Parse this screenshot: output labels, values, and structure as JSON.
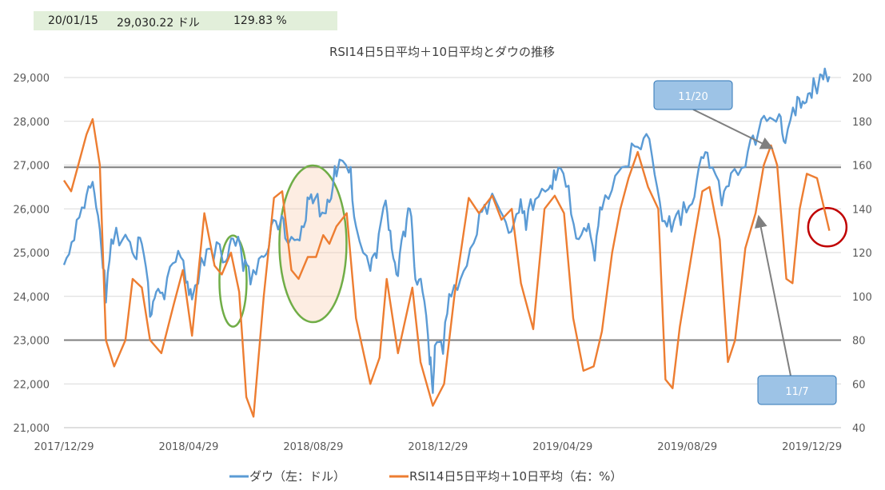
{
  "info_bar": {
    "date": "20/01/15",
    "price": "29,030.22 ドル",
    "rsi": "129.83 %"
  },
  "chart_data": {
    "type": "line",
    "title": "RSI14日5日平均＋10日平均とダウの推移",
    "x_tick_labels": [
      "2017/12/29",
      "2018/04/29",
      "2018/08/29",
      "2018/12/29",
      "2019/04/29",
      "2019/08/29",
      "2019/12/29"
    ],
    "x_range": [
      "2017/12/29",
      "2020/01/15"
    ],
    "y_left": {
      "ticks": [
        "21,000",
        "22,000",
        "23,000",
        "24,000",
        "25,000",
        "26,000",
        "27,000",
        "28,000",
        "29,000"
      ],
      "range": [
        21000,
        29000
      ]
    },
    "y_right": {
      "ticks": [
        "40",
        "60",
        "80",
        "100",
        "120",
        "140",
        "160",
        "180",
        "200"
      ],
      "range": [
        40,
        200
      ]
    },
    "grid": true,
    "legend_position": "bottom",
    "series": [
      {
        "name": "ダウ（左：ドル）",
        "axis": "left",
        "color": "#5b9bd5",
        "points": [
          [
            "2017-12-29",
            24719
          ],
          [
            "2018-01-08",
            25283
          ],
          [
            "2018-01-18",
            26017
          ],
          [
            "2018-01-26",
            26616
          ],
          [
            "2018-02-02",
            25520
          ],
          [
            "2018-02-08",
            23860
          ],
          [
            "2018-02-15",
            25200
          ],
          [
            "2018-02-27",
            25410
          ],
          [
            "2018-03-08",
            24895
          ],
          [
            "2018-03-15",
            25200
          ],
          [
            "2018-03-23",
            23533
          ],
          [
            "2018-03-29",
            24103
          ],
          [
            "2018-04-06",
            23932
          ],
          [
            "2018-04-17",
            24786
          ],
          [
            "2018-04-27",
            24311
          ],
          [
            "2018-05-03",
            23930
          ],
          [
            "2018-05-15",
            24706
          ],
          [
            "2018-05-24",
            24811
          ],
          [
            "2018-06-05",
            24799
          ],
          [
            "2018-06-12",
            25320
          ],
          [
            "2018-06-22",
            24580
          ],
          [
            "2018-06-29",
            24271
          ],
          [
            "2018-07-10",
            24919
          ],
          [
            "2018-07-17",
            25119
          ],
          [
            "2018-07-26",
            25527
          ],
          [
            "2018-08-02",
            25327
          ],
          [
            "2018-08-14",
            25299
          ],
          [
            "2018-08-22",
            25733
          ],
          [
            "2018-08-29",
            26125
          ],
          [
            "2018-09-07",
            25917
          ],
          [
            "2018-09-14",
            26155
          ],
          [
            "2018-09-21",
            26743
          ],
          [
            "2018-10-03",
            26828
          ],
          [
            "2018-10-10",
            25599
          ],
          [
            "2018-10-24",
            24583
          ],
          [
            "2018-10-30",
            24875
          ],
          [
            "2018-11-08",
            26191
          ],
          [
            "2018-11-14",
            25080
          ],
          [
            "2018-11-20",
            24465
          ],
          [
            "2018-11-27",
            25367
          ],
          [
            "2018-12-03",
            25826
          ],
          [
            "2018-12-07",
            24389
          ],
          [
            "2018-12-14",
            24101
          ],
          [
            "2018-12-21",
            22445
          ],
          [
            "2018-12-24",
            21792
          ],
          [
            "2018-12-26",
            22878
          ],
          [
            "2019-01-03",
            22686
          ],
          [
            "2019-01-11",
            23996
          ],
          [
            "2019-01-23",
            24575
          ],
          [
            "2019-02-05",
            25411
          ],
          [
            "2019-02-15",
            25883
          ],
          [
            "2019-02-25",
            26091
          ],
          [
            "2019-03-08",
            25450
          ],
          [
            "2019-03-18",
            25914
          ],
          [
            "2019-03-25",
            25516
          ],
          [
            "2019-04-03",
            26218
          ],
          [
            "2019-04-16",
            26452
          ],
          [
            "2019-04-23",
            26656
          ],
          [
            "2019-05-03",
            26504
          ],
          [
            "2019-05-13",
            25324
          ],
          [
            "2019-05-23",
            25490
          ],
          [
            "2019-05-31",
            24815
          ],
          [
            "2019-06-07",
            25983
          ],
          [
            "2019-06-20",
            26753
          ],
          [
            "2019-07-03",
            26966
          ],
          [
            "2019-07-15",
            27359
          ],
          [
            "2019-07-26",
            27192
          ],
          [
            "2019-08-05",
            25718
          ],
          [
            "2019-08-14",
            25479
          ],
          [
            "2019-08-23",
            25629
          ],
          [
            "2019-09-03",
            26118
          ],
          [
            "2019-09-12",
            27182
          ],
          [
            "2019-09-20",
            26935
          ],
          [
            "2019-10-02",
            26078
          ],
          [
            "2019-10-11",
            26816
          ],
          [
            "2019-10-25",
            26958
          ],
          [
            "2019-11-04",
            27462
          ],
          [
            "2019-11-15",
            28004
          ],
          [
            "2019-11-27",
            28164
          ],
          [
            "2019-12-03",
            27502
          ],
          [
            "2019-12-13",
            28135
          ],
          [
            "2019-12-20",
            28455
          ],
          [
            "2019-12-27",
            28645
          ],
          [
            "2020-01-03",
            28634
          ],
          [
            "2020-01-09",
            28956
          ],
          [
            "2020-01-15",
            29030
          ]
        ]
      },
      {
        "name": "RSI14日5日平均＋10日平均（右：%）",
        "axis": "right",
        "color": "#ed7d31",
        "points": [
          [
            "2017-12-29",
            153
          ],
          [
            "2018-01-05",
            148
          ],
          [
            "2018-01-12",
            160
          ],
          [
            "2018-01-20",
            174
          ],
          [
            "2018-01-26",
            181
          ],
          [
            "2018-02-02",
            160
          ],
          [
            "2018-02-08",
            80
          ],
          [
            "2018-02-16",
            68
          ],
          [
            "2018-02-27",
            80
          ],
          [
            "2018-03-06",
            108
          ],
          [
            "2018-03-15",
            104
          ],
          [
            "2018-03-23",
            80
          ],
          [
            "2018-04-03",
            74
          ],
          [
            "2018-04-15",
            96
          ],
          [
            "2018-04-24",
            112
          ],
          [
            "2018-05-03",
            82
          ],
          [
            "2018-05-15",
            138
          ],
          [
            "2018-05-25",
            114
          ],
          [
            "2018-06-01",
            110
          ],
          [
            "2018-06-10",
            120
          ],
          [
            "2018-06-18",
            102
          ],
          [
            "2018-06-25",
            54
          ],
          [
            "2018-07-02",
            45
          ],
          [
            "2018-07-12",
            100
          ],
          [
            "2018-07-22",
            145
          ],
          [
            "2018-07-30",
            148
          ],
          [
            "2018-08-08",
            112
          ],
          [
            "2018-08-15",
            108
          ],
          [
            "2018-08-24",
            118
          ],
          [
            "2018-09-01",
            118
          ],
          [
            "2018-09-08",
            128
          ],
          [
            "2018-09-14",
            124
          ],
          [
            "2018-09-21",
            132
          ],
          [
            "2018-10-01",
            138
          ],
          [
            "2018-10-10",
            90
          ],
          [
            "2018-10-24",
            60
          ],
          [
            "2018-11-02",
            72
          ],
          [
            "2018-11-09",
            108
          ],
          [
            "2018-11-20",
            74
          ],
          [
            "2018-12-04",
            104
          ],
          [
            "2018-12-12",
            70
          ],
          [
            "2018-12-24",
            50
          ],
          [
            "2019-01-04",
            60
          ],
          [
            "2019-01-14",
            100
          ],
          [
            "2019-01-28",
            145
          ],
          [
            "2019-02-07",
            138
          ],
          [
            "2019-02-20",
            146
          ],
          [
            "2019-03-01",
            135
          ],
          [
            "2019-03-11",
            140
          ],
          [
            "2019-03-20",
            106
          ],
          [
            "2019-04-01",
            85
          ],
          [
            "2019-04-12",
            140
          ],
          [
            "2019-04-22",
            146
          ],
          [
            "2019-05-01",
            138
          ],
          [
            "2019-05-10",
            90
          ],
          [
            "2019-05-20",
            66
          ],
          [
            "2019-05-30",
            68
          ],
          [
            "2019-06-07",
            84
          ],
          [
            "2019-06-17",
            120
          ],
          [
            "2019-06-25",
            140
          ],
          [
            "2019-07-03",
            154
          ],
          [
            "2019-07-12",
            166
          ],
          [
            "2019-07-22",
            150
          ],
          [
            "2019-08-01",
            140
          ],
          [
            "2019-08-08",
            62
          ],
          [
            "2019-08-15",
            58
          ],
          [
            "2019-08-22",
            86
          ],
          [
            "2019-08-29",
            106
          ],
          [
            "2019-09-05",
            126
          ],
          [
            "2019-09-13",
            148
          ],
          [
            "2019-09-20",
            150
          ],
          [
            "2019-09-30",
            126
          ],
          [
            "2019-10-08",
            70
          ],
          [
            "2019-10-15",
            80
          ],
          [
            "2019-10-25",
            122
          ],
          [
            "2019-11-04",
            138
          ],
          [
            "2019-11-12",
            160
          ],
          [
            "2019-11-19",
            169
          ],
          [
            "2019-11-25",
            160
          ],
          [
            "2019-12-04",
            108
          ],
          [
            "2019-12-10",
            106
          ],
          [
            "2019-12-17",
            140
          ],
          [
            "2019-12-24",
            156
          ],
          [
            "2020-01-03",
            154
          ],
          [
            "2020-01-10",
            140
          ],
          [
            "2020-01-15",
            130
          ]
        ]
      }
    ],
    "reference_lines_right": [
      159,
      80
    ],
    "annotations": [
      {
        "label": "11/20",
        "target_date": "2019-11-20",
        "target_value": 167
      },
      {
        "label": "11/7",
        "target_date": "2019-11-07",
        "target_value": 138
      }
    ]
  }
}
